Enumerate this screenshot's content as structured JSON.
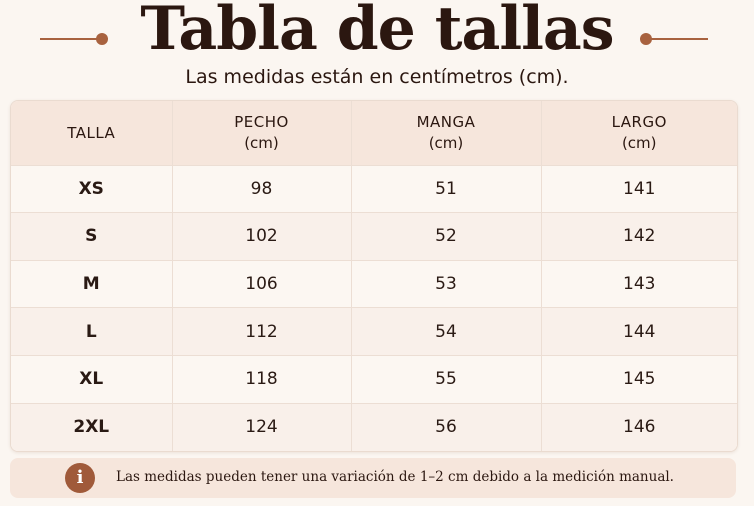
{
  "header": {
    "title": "Tabla de tallas",
    "subtitle": "Las medidas están en centímetros (cm)."
  },
  "table": {
    "columns": [
      {
        "label": "TALLA",
        "unit": ""
      },
      {
        "label": "PECHO",
        "unit": "(cm)"
      },
      {
        "label": "MANGA",
        "unit": "(cm)"
      },
      {
        "label": "LARGO",
        "unit": "(cm)"
      }
    ],
    "rows": [
      {
        "size": "XS",
        "pecho": "98",
        "manga": "51",
        "largo": "141"
      },
      {
        "size": "S",
        "pecho": "102",
        "manga": "52",
        "largo": "142"
      },
      {
        "size": "M",
        "pecho": "106",
        "manga": "53",
        "largo": "143"
      },
      {
        "size": "L",
        "pecho": "112",
        "manga": "54",
        "largo": "144"
      },
      {
        "size": "XL",
        "pecho": "118",
        "manga": "55",
        "largo": "145"
      },
      {
        "size": "2XL",
        "pecho": "124",
        "manga": "56",
        "largo": "146"
      }
    ]
  },
  "note": {
    "icon": "info-icon",
    "icon_glyph": "i",
    "text": "Las medidas pueden tener una variación de 1–2 cm debido a la medición manual."
  },
  "colors": {
    "accent": "#a8623f",
    "title": "#2b1710",
    "header_bg": "#f6e6dc",
    "page_bg": "#fbf6f1"
  }
}
